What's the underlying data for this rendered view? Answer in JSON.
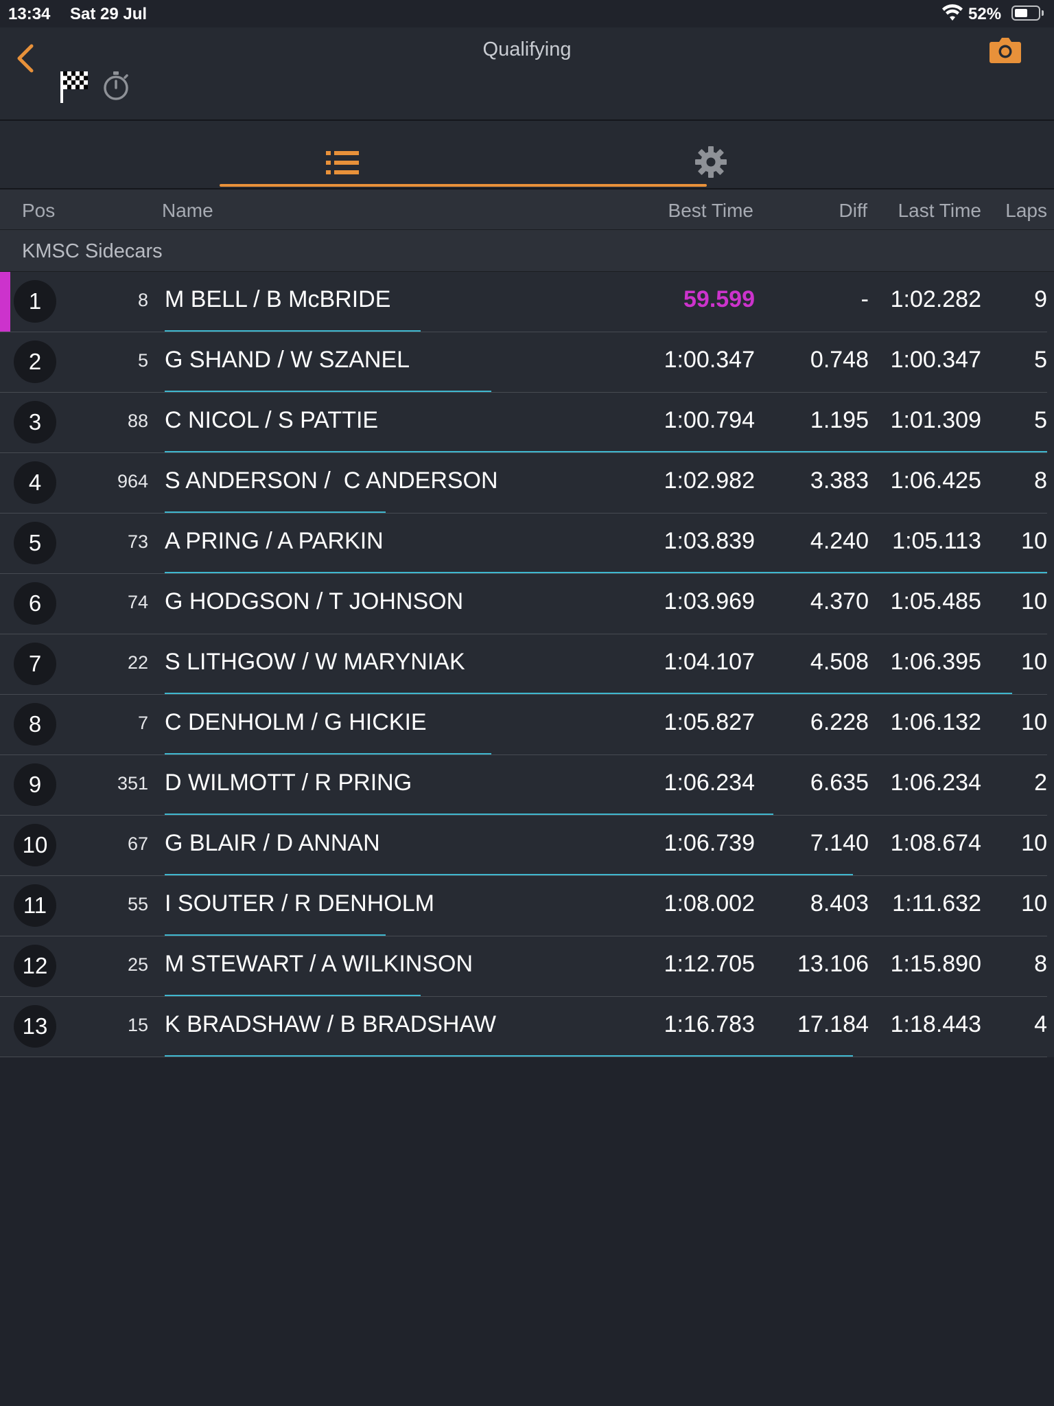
{
  "status_bar": {
    "time": "13:34",
    "date": "Sat 29 Jul",
    "battery": "52%",
    "battery_level": 0.52
  },
  "header": {
    "title": "Qualifying",
    "back_icon": "chevron-left-icon",
    "camera_icon": "camera-icon",
    "flag_icon": "checkered-flag-icon",
    "stopwatch_icon": "stopwatch-icon"
  },
  "tabs": [
    {
      "name": "list",
      "icon": "list-icon",
      "active": true
    },
    {
      "name": "settings",
      "icon": "gear-icon",
      "active": false
    }
  ],
  "columns": {
    "pos": "Pos",
    "name": "Name",
    "best_time": "Best Time",
    "diff": "Diff",
    "last_time": "Last Time",
    "laps": "Laps"
  },
  "group": "KMSC Sidecars",
  "colors": {
    "accent": "#e8913a",
    "fastest": "#cc33cc",
    "progress": "#3fb7cf",
    "background": "#20232b"
  },
  "rows": [
    {
      "pos": "1",
      "num": "8",
      "name": "M BELL / B McBRIDE",
      "best": "59.599",
      "diff": "-",
      "last": "1:02.282",
      "laps": "9",
      "fastest": true,
      "progress": 0.29
    },
    {
      "pos": "2",
      "num": "5",
      "name": "G SHAND / W SZANEL",
      "best": "1:00.347",
      "diff": "0.748",
      "last": "1:00.347",
      "laps": "5",
      "fastest": false,
      "progress": 0.37
    },
    {
      "pos": "3",
      "num": "88",
      "name": "C NICOL / S PATTIE",
      "best": "1:00.794",
      "diff": "1.195",
      "last": "1:01.309",
      "laps": "5",
      "fastest": false,
      "progress": 1.0
    },
    {
      "pos": "4",
      "num": "964",
      "name": "S ANDERSON /  C ANDERSON",
      "best": "1:02.982",
      "diff": "3.383",
      "last": "1:06.425",
      "laps": "8",
      "fastest": false,
      "progress": 0.25
    },
    {
      "pos": "5",
      "num": "73",
      "name": "A PRING / A PARKIN",
      "best": "1:03.839",
      "diff": "4.240",
      "last": "1:05.113",
      "laps": "10",
      "fastest": false,
      "progress": 1.0
    },
    {
      "pos": "6",
      "num": "74",
      "name": "G HODGSON / T JOHNSON",
      "best": "1:03.969",
      "diff": "4.370",
      "last": "1:05.485",
      "laps": "10",
      "fastest": false,
      "progress": 0.0
    },
    {
      "pos": "7",
      "num": "22",
      "name": "S LITHGOW / W MARYNIAK",
      "best": "1:04.107",
      "diff": "4.508",
      "last": "1:06.395",
      "laps": "10",
      "fastest": false,
      "progress": 0.96
    },
    {
      "pos": "8",
      "num": "7",
      "name": "C DENHOLM / G HICKIE",
      "best": "1:05.827",
      "diff": "6.228",
      "last": "1:06.132",
      "laps": "10",
      "fastest": false,
      "progress": 0.37
    },
    {
      "pos": "9",
      "num": "351",
      "name": "D WILMOTT / R PRING",
      "best": "1:06.234",
      "diff": "6.635",
      "last": "1:06.234",
      "laps": "2",
      "fastest": false,
      "progress": 0.69
    },
    {
      "pos": "10",
      "num": "67",
      "name": "G BLAIR / D ANNAN",
      "best": "1:06.739",
      "diff": "7.140",
      "last": "1:08.674",
      "laps": "10",
      "fastest": false,
      "progress": 0.78
    },
    {
      "pos": "11",
      "num": "55",
      "name": "I SOUTER / R DENHOLM",
      "best": "1:08.002",
      "diff": "8.403",
      "last": "1:11.632",
      "laps": "10",
      "fastest": false,
      "progress": 0.25
    },
    {
      "pos": "12",
      "num": "25",
      "name": "M STEWART / A WILKINSON",
      "best": "1:12.705",
      "diff": "13.106",
      "last": "1:15.890",
      "laps": "8",
      "fastest": false,
      "progress": 0.29
    },
    {
      "pos": "13",
      "num": "15",
      "name": "K BRADSHAW / B BRADSHAW",
      "best": "1:16.783",
      "diff": "17.184",
      "last": "1:18.443",
      "laps": "4",
      "fastest": false,
      "progress": 0.78
    }
  ]
}
